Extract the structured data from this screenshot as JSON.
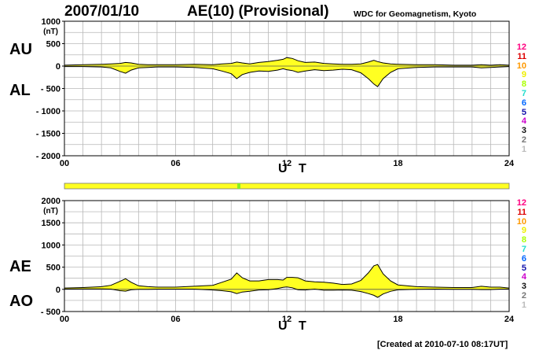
{
  "header": {
    "date": "2007/01/10",
    "title": "AE(10) (Provisional)",
    "source": "WDC for Geomagnetism, Kyoto",
    "created": "[Created at 2010-07-10 08:17UT]"
  },
  "side_labels": {
    "au": "AU",
    "al": "AL",
    "ae": "AE",
    "ao": "AO"
  },
  "station_levels": {
    "labels": [
      "12",
      "11",
      "10",
      "9",
      "8",
      "7",
      "6",
      "5",
      "4",
      "3",
      "2",
      "1"
    ],
    "colors": [
      "#ff0080",
      "#dd0000",
      "#ff9900",
      "#eeee00",
      "#aaff00",
      "#22ddcc",
      "#0066ff",
      "#1111aa",
      "#cc00cc",
      "#111111",
      "#777777",
      "#bbbbbb"
    ]
  },
  "colors": {
    "fill": "#ffff22",
    "stroke": "#000000",
    "grid": "#b8b8b8",
    "axis": "#000000",
    "bar": "#ffff22",
    "bar_mark": "#88ee22"
  },
  "chart_data": [
    {
      "type": "area",
      "title": "AU / AL",
      "xlabel": "U T",
      "ylabel": "(nT)",
      "xlim": [
        0,
        24
      ],
      "ylim": [
        -2000,
        1000
      ],
      "xticks": [
        "00",
        "06",
        "12",
        "18",
        "24"
      ],
      "yticks": [
        "1000",
        "500",
        "0",
        "- 500",
        "- 1000",
        "- 1500",
        "- 2000"
      ],
      "ytick_values": [
        1000,
        500,
        0,
        -500,
        -1000,
        -1500,
        -2000
      ],
      "unit_label": "(nT)",
      "series": [
        {
          "name": "AU",
          "x": [
            0,
            1,
            2,
            2.5,
            3,
            3.3,
            3.6,
            4,
            4.5,
            5,
            6,
            7,
            8,
            8.5,
            9,
            9.3,
            9.6,
            10,
            10.5,
            11,
            11.5,
            11.8,
            12,
            12.3,
            12.6,
            13,
            13.5,
            14,
            14.5,
            15,
            15.5,
            16,
            16.4,
            16.7,
            16.9,
            17.2,
            17.6,
            18,
            19,
            20,
            21,
            22,
            22.5,
            23,
            23.5,
            24
          ],
          "y": [
            20,
            30,
            40,
            50,
            60,
            80,
            70,
            40,
            30,
            30,
            30,
            40,
            30,
            50,
            60,
            90,
            70,
            50,
            80,
            100,
            130,
            150,
            190,
            170,
            120,
            80,
            90,
            60,
            50,
            40,
            40,
            50,
            90,
            130,
            100,
            70,
            50,
            40,
            30,
            30,
            20,
            20,
            30,
            20,
            30,
            20
          ]
        },
        {
          "name": "AL",
          "x": [
            0,
            1,
            2,
            2.5,
            3,
            3.3,
            3.6,
            4,
            4.5,
            5,
            6,
            7,
            8,
            8.5,
            9,
            9.3,
            9.6,
            10,
            10.5,
            11,
            11.5,
            11.8,
            12,
            12.3,
            12.6,
            13,
            13.5,
            14,
            14.5,
            15,
            15.5,
            16,
            16.4,
            16.7,
            16.9,
            17.2,
            17.6,
            18,
            19,
            20,
            21,
            22,
            22.5,
            23,
            23.5,
            24
          ],
          "y": [
            -10,
            -10,
            -20,
            -40,
            -120,
            -160,
            -90,
            -40,
            -30,
            -20,
            -20,
            -30,
            -60,
            -110,
            -170,
            -280,
            -190,
            -140,
            -110,
            -120,
            -90,
            -60,
            -80,
            -100,
            -140,
            -110,
            -80,
            -100,
            -90,
            -70,
            -80,
            -150,
            -280,
            -400,
            -460,
            -280,
            -140,
            -60,
            -30,
            -20,
            -20,
            -20,
            -40,
            -30,
            -20,
            -10
          ]
        }
      ]
    },
    {
      "type": "area",
      "title": "AE / AO",
      "xlabel": "U T",
      "ylabel": "(nT)",
      "xlim": [
        0,
        24
      ],
      "ylim": [
        -500,
        2000
      ],
      "xticks": [
        "00",
        "06",
        "12",
        "18",
        "24"
      ],
      "yticks": [
        "2000",
        "1500",
        "1000",
        "500",
        "0",
        "- 500"
      ],
      "ytick_values": [
        2000,
        1500,
        1000,
        500,
        0,
        -500
      ],
      "unit_label": "(nT)",
      "series": [
        {
          "name": "AE",
          "x": [
            0,
            1,
            2,
            2.5,
            3,
            3.3,
            3.6,
            4,
            4.5,
            5,
            6,
            7,
            8,
            8.5,
            9,
            9.3,
            9.6,
            10,
            10.5,
            11,
            11.5,
            11.8,
            12,
            12.3,
            12.6,
            13,
            13.5,
            14,
            14.5,
            15,
            15.5,
            16,
            16.4,
            16.7,
            16.9,
            17.2,
            17.6,
            18,
            19,
            20,
            21,
            22,
            22.5,
            23,
            23.5,
            24
          ],
          "y": [
            30,
            40,
            60,
            90,
            180,
            240,
            160,
            80,
            60,
            50,
            50,
            70,
            90,
            160,
            230,
            370,
            260,
            190,
            190,
            220,
            220,
            210,
            270,
            270,
            260,
            190,
            170,
            160,
            140,
            110,
            120,
            200,
            370,
            530,
            560,
            350,
            190,
            100,
            60,
            50,
            40,
            40,
            70,
            50,
            50,
            30
          ]
        },
        {
          "name": "AO",
          "x": [
            0,
            1,
            2,
            2.5,
            3,
            3.3,
            3.6,
            4,
            4.5,
            5,
            6,
            7,
            8,
            8.5,
            9,
            9.3,
            9.6,
            10,
            10.5,
            11,
            11.5,
            11.8,
            12,
            12.3,
            12.6,
            13,
            13.5,
            14,
            14.5,
            15,
            15.5,
            16,
            16.4,
            16.7,
            16.9,
            17.2,
            17.6,
            18,
            19,
            20,
            21,
            22,
            22.5,
            23,
            23.5,
            24
          ],
          "y": [
            5,
            10,
            10,
            5,
            -30,
            -40,
            -10,
            0,
            0,
            5,
            5,
            5,
            -15,
            -30,
            -55,
            -95,
            -60,
            -45,
            -15,
            -10,
            20,
            45,
            55,
            35,
            -10,
            -15,
            5,
            -20,
            -20,
            -15,
            -20,
            -50,
            -95,
            -135,
            -180,
            -105,
            -45,
            -10,
            0,
            5,
            0,
            0,
            -5,
            -5,
            5,
            5
          ]
        }
      ]
    }
  ]
}
